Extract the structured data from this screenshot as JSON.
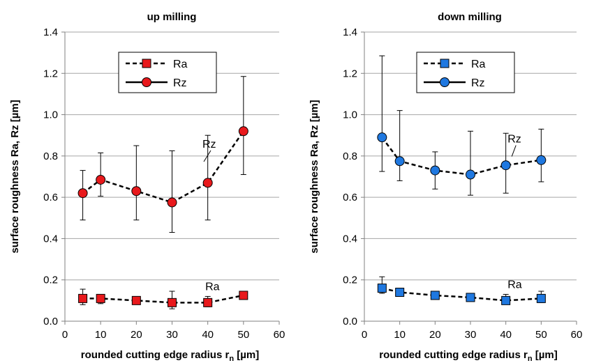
{
  "chart_data": [
    {
      "type": "line",
      "title": "up milling",
      "xlabel": "rounded cutting edge radius r",
      "xlabel_sub": "n",
      "xlabel_unit": " [µm]",
      "ylabel": "surface roughness Ra, Rz [µm]",
      "xlim": [
        0,
        60
      ],
      "ylim": [
        0,
        1.4
      ],
      "xticks": [
        "0",
        "10",
        "20",
        "30",
        "40",
        "50",
        "60"
      ],
      "yticks": [
        "0.0",
        "0.2",
        "0.4",
        "0.6",
        "0.8",
        "1.0",
        "1.2",
        "1.4"
      ],
      "grid": true,
      "legend_position": "top-center",
      "marker_color": "#e8191c",
      "series": [
        {
          "name": "Ra",
          "marker": "square",
          "x": [
            5,
            10,
            20,
            30,
            40,
            50
          ],
          "y": [
            0.11,
            0.11,
            0.1,
            0.09,
            0.09,
            0.125
          ],
          "err_low": [
            0.08,
            0.085,
            0.085,
            0.06,
            0.07,
            0.11
          ],
          "err_high": [
            0.155,
            0.125,
            0.11,
            0.145,
            0.12,
            0.135
          ]
        },
        {
          "name": "Rz",
          "marker": "circle",
          "x": [
            5,
            10,
            20,
            30,
            40,
            50
          ],
          "y": [
            0.62,
            0.685,
            0.63,
            0.575,
            0.67,
            0.92
          ],
          "err_low": [
            0.49,
            0.605,
            0.49,
            0.43,
            0.49,
            0.71
          ],
          "err_high": [
            0.73,
            0.815,
            0.85,
            0.825,
            0.9,
            1.185
          ]
        }
      ],
      "annotations": [
        {
          "text": "Rz",
          "x": 38.5,
          "y": 0.84
        },
        {
          "text": "Ra",
          "x": 39.3,
          "y": 0.15
        }
      ]
    },
    {
      "type": "line",
      "title": "down milling",
      "xlabel": "rounded cutting edge radius r",
      "xlabel_sub": "n",
      "xlabel_unit": " [µm]",
      "ylabel": "surface roughness Ra, Rz [µm]",
      "xlim": [
        0,
        60
      ],
      "ylim": [
        0,
        1.4
      ],
      "xticks": [
        "0",
        "10",
        "20",
        "30",
        "40",
        "50",
        "60"
      ],
      "yticks": [
        "0.0",
        "0.2",
        "0.4",
        "0.6",
        "0.8",
        "1.0",
        "1.2",
        "1.4"
      ],
      "grid": true,
      "legend_position": "top-center",
      "marker_color": "#1f78e0",
      "series": [
        {
          "name": "Ra",
          "marker": "square",
          "x": [
            5,
            10,
            20,
            30,
            40,
            50
          ],
          "y": [
            0.16,
            0.14,
            0.125,
            0.115,
            0.1,
            0.11
          ],
          "err_low": [
            0.135,
            0.13,
            0.115,
            0.105,
            0.085,
            0.09
          ],
          "err_high": [
            0.215,
            0.155,
            0.135,
            0.125,
            0.13,
            0.145
          ]
        },
        {
          "name": "Rz",
          "marker": "circle",
          "x": [
            5,
            10,
            20,
            30,
            40,
            50
          ],
          "y": [
            0.89,
            0.775,
            0.73,
            0.71,
            0.755,
            0.78
          ],
          "err_low": [
            0.725,
            0.68,
            0.64,
            0.61,
            0.62,
            0.675
          ],
          "err_high": [
            1.285,
            1.02,
            0.82,
            0.92,
            0.91,
            0.93
          ]
        }
      ],
      "annotations": [
        {
          "text": "Rz",
          "x": 40.5,
          "y": 0.865
        },
        {
          "text": "Ra",
          "x": 40.5,
          "y": 0.16
        }
      ]
    }
  ]
}
